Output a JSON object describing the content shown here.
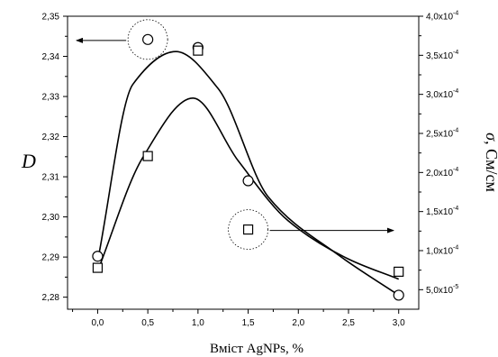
{
  "chart_data": {
    "type": "scatter",
    "xlabel": "Вміст AgNPs, %",
    "ylabel_left": "D",
    "ylabel_right_symbol": "σ",
    "ylabel_right_unit": ", См/см",
    "xlim": [
      -0.3,
      3.2
    ],
    "ylim_left": [
      2.277,
      2.35
    ],
    "ylim_right": [
      2.5e-05,
      0.0004
    ],
    "x_ticks": [
      "0,0",
      "0,5",
      "1,0",
      "1,5",
      "2,0",
      "2,5",
      "3,0"
    ],
    "y_left_ticks": [
      "2,28",
      "2,29",
      "2,30",
      "2,31",
      "2,32",
      "2,33",
      "2,34",
      "2,35"
    ],
    "y_right_ticks": [
      {
        "mant": "5,0x10",
        "exp": "-5"
      },
      {
        "mant": "1,0x10",
        "exp": "-4"
      },
      {
        "mant": "1,5x10",
        "exp": "-4"
      },
      {
        "mant": "2,0x10",
        "exp": "-4"
      },
      {
        "mant": "2,5x10",
        "exp": "-4"
      },
      {
        "mant": "3,0x10",
        "exp": "-4"
      },
      {
        "mant": "3,5x10",
        "exp": "-4"
      },
      {
        "mant": "4,0x10",
        "exp": "-4"
      }
    ],
    "series": [
      {
        "marker": "circle",
        "axis": "left",
        "x": [
          0.0,
          0.5,
          1.0,
          1.5,
          3.0
        ],
        "y": [
          2.2902,
          2.3442,
          2.3422,
          2.309,
          2.2805
        ]
      },
      {
        "marker": "square",
        "axis": "right",
        "x": [
          0.0,
          0.5,
          1.0,
          1.5,
          3.0
        ],
        "y": [
          7.8e-05,
          0.000221,
          0.000356,
          0.000127,
          7.3e-05
        ]
      }
    ],
    "grid": false
  }
}
